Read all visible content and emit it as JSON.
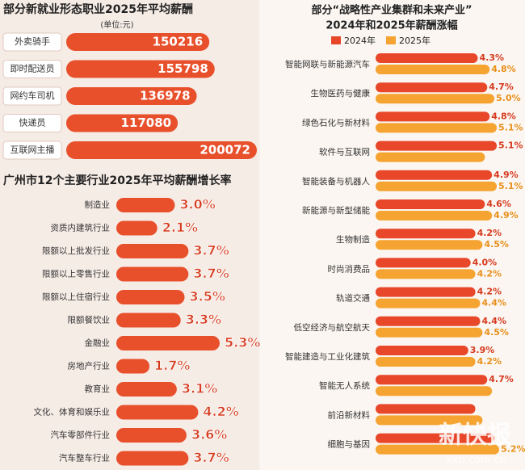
{
  "chart_data": [
    {
      "type": "hbar",
      "title": "部分新就业形态职业2025年平均薪酬",
      "subtitle": "(单位:元)",
      "categories": [
        "外卖骑手",
        "即时配送员",
        "网约车司机",
        "快递员",
        "互联网主播"
      ],
      "values": [
        150216,
        155798,
        136978,
        117080,
        200072
      ],
      "color": "#e8502c"
    },
    {
      "type": "hbar-outside",
      "title": "广州市12个主要行业2025年平均薪酬增长率",
      "categories": [
        "制造业",
        "资质内建筑行业",
        "限额以上批发行业",
        "限额以上零售行业",
        "限额以上住宿行业",
        "限额餐饮业",
        "金融业",
        "房地产行业",
        "教育业",
        "文化、体育和娱乐业",
        "汽车零部件行业",
        "汽车整车行业"
      ],
      "values": [
        3.0,
        2.1,
        3.7,
        3.7,
        3.5,
        3.3,
        5.3,
        1.7,
        3.1,
        4.2,
        3.6,
        3.7
      ],
      "value_labels": [
        "3.0%",
        "2.1%",
        "3.7%",
        "3.7%",
        "3.5%",
        "3.3%",
        "5.3%",
        "1.7%",
        "3.1%",
        "4.2%",
        "3.6%",
        "3.7%"
      ],
      "color": "#e8502c"
    },
    {
      "type": "grouped-hbar",
      "title": "部分“战略性产业集群和未来产业”",
      "subtitle": "2024年和2025年薪酬涨幅",
      "categories": [
        "智能网联与新能源汽车",
        "生物医药与健康",
        "绿色石化与新材料",
        "软件与互联网",
        "智能装备与机器人",
        "新能源与新型储能",
        "生物制造",
        "时尚消费品",
        "轨道交通",
        "低空经济与航空航天",
        "智能建造与工业化建筑",
        "智能无人系统",
        "前沿新材料",
        "细胞与基因"
      ],
      "series": [
        {
          "name": "2024年",
          "color": "#e8472a",
          "values": [
            4.3,
            4.7,
            4.8,
            5.1,
            4.9,
            4.6,
            4.2,
            4.0,
            4.2,
            4.4,
            3.9,
            4.7,
            4.2,
            5.0
          ],
          "value_labels": [
            "4.3%",
            "4.7%",
            "4.8%",
            "5.1%",
            "4.9%",
            "4.6%",
            "4.2%",
            "4.0%",
            "4.2%",
            "4.4%",
            "3.9%",
            "4.7%",
            null,
            null
          ]
        },
        {
          "name": "2025年",
          "color": "#f5a431",
          "values": [
            4.8,
            5.0,
            5.1,
            4.6,
            5.1,
            4.9,
            4.5,
            4.2,
            4.4,
            4.5,
            4.2,
            4.9,
            4.5,
            5.2
          ],
          "value_labels": [
            "4.8%",
            "5.0%",
            "5.1%",
            null,
            "5.1%",
            "4.9%",
            "4.5%",
            "4.2%",
            "4.4%",
            "4.5%",
            "4.2%",
            null,
            null,
            "5.2%"
          ]
        }
      ]
    }
  ],
  "watermark": {
    "name": "新快报",
    "url": "xkb.com.cn"
  }
}
